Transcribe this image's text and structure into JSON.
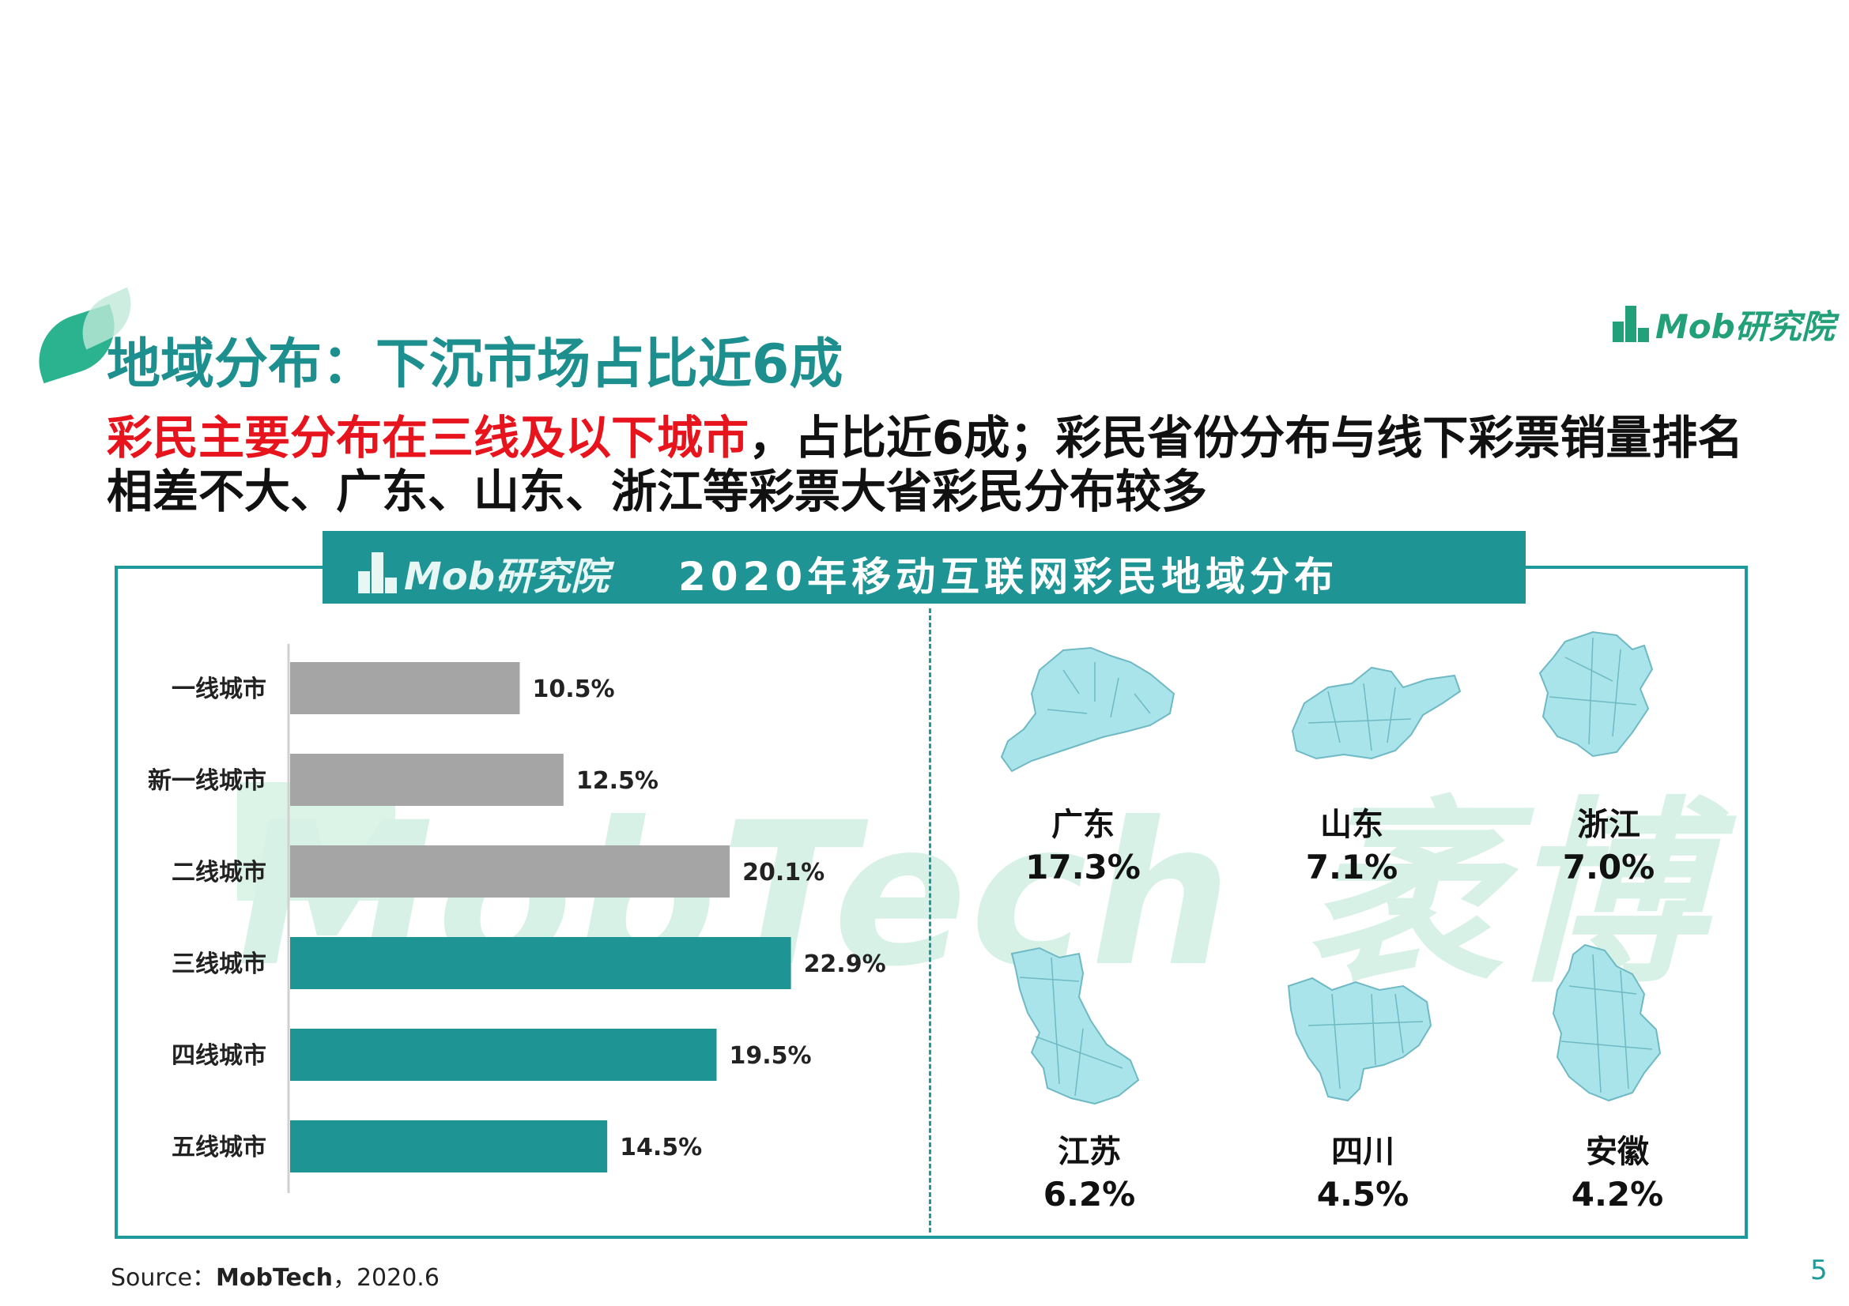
{
  "watermark": "MobTech 袤博",
  "header": {
    "title": "地域分布：下沉市场占比近6成",
    "brand": "Mob研究院",
    "subtitle_highlight": "彩民主要分布在三线及以下城市",
    "subtitle_rest": "，占比近6成；彩民省份分布与线下彩票销量排名相差不大、广东、山东、浙江等彩票大省彩民分布较多"
  },
  "panel": {
    "logo": "Mob研究院",
    "title": "2020年移动互联网彩民地域分布"
  },
  "colors": {
    "teal": "#1e9495",
    "gray": "#a5a5a5",
    "map": "#a8e4ea",
    "red": "#e8141d"
  },
  "chart_data": {
    "type": "bar",
    "orientation": "horizontal",
    "categories": [
      "一线城市",
      "新一线城市",
      "二线城市",
      "三线城市",
      "四线城市",
      "五线城市"
    ],
    "values": [
      10.5,
      12.5,
      20.1,
      22.9,
      19.5,
      14.5
    ],
    "value_labels": [
      "10.5%",
      "12.5%",
      "20.1%",
      "22.9%",
      "19.5%",
      "14.5%"
    ],
    "bar_colors": [
      "#a5a5a5",
      "#a5a5a5",
      "#a5a5a5",
      "#1e9495",
      "#1e9495",
      "#1e9495"
    ],
    "xlim": [
      0,
      30
    ],
    "title": "",
    "xlabel": "",
    "ylabel": ""
  },
  "provinces": [
    {
      "name": "广东",
      "value": "17.3%",
      "icon": "guangdong-map-icon"
    },
    {
      "name": "山东",
      "value": "7.1%",
      "icon": "shandong-map-icon"
    },
    {
      "name": "浙江",
      "value": "7.0%",
      "icon": "zhejiang-map-icon"
    },
    {
      "name": "江苏",
      "value": "6.2%",
      "icon": "jiangsu-map-icon"
    },
    {
      "name": "四川",
      "value": "4.5%",
      "icon": "sichuan-map-icon"
    },
    {
      "name": "安徽",
      "value": "4.2%",
      "icon": "anhui-map-icon"
    }
  ],
  "footer": {
    "source_prefix": "Source：",
    "source_name": "MobTech",
    "source_suffix": "，2020.6",
    "page_number": "5"
  }
}
